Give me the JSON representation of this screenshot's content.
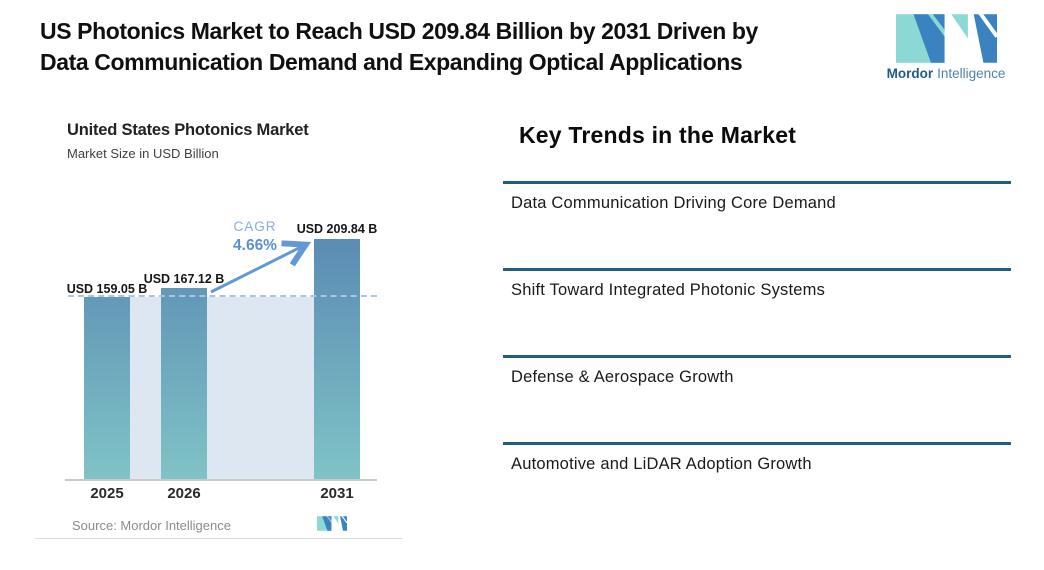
{
  "header": {
    "title_lines": [
      "US Photonics Market to Reach USD 209.84 Billion by 2031 Driven by",
      "Data Communication Demand and Expanding Optical Applications"
    ],
    "brand": {
      "name_bold": "Mordor",
      "name_regular": "Intelligence",
      "logo_colors": {
        "teal": "#8bd8d4",
        "blue": "#3b82c1"
      }
    }
  },
  "chart": {
    "title": "United States Photonics Market",
    "subtitle": "Market Size in USD Billion",
    "source": "Source: Mordor Intelligence"
  },
  "chart_data": {
    "type": "bar",
    "title": "United States Photonics Market",
    "ylabel": "Market Size in USD Billion",
    "categories": [
      "2025",
      "2026",
      "2031"
    ],
    "values": [
      159.05,
      167.12,
      209.84
    ],
    "bar_labels": [
      "USD 159.05 B",
      "USD 167.12 B",
      "USD 209.84 B"
    ],
    "cagr_label": "CAGR",
    "cagr_value": "4.66%",
    "reference_line_value": 159.05,
    "grid": "off",
    "colors": {
      "bar_top": "#5b8cb4",
      "bar_bottom": "#7fc3c6",
      "band": "#dde7f1",
      "dashed_line": "#a7c6e3",
      "arrow": "#6398d2"
    }
  },
  "trends": {
    "heading": "Key Trends in the Market",
    "divider_color": "#1e607f",
    "items": [
      "Data Communication Driving Core Demand",
      "Shift Toward Integrated Photonic Systems",
      "Defense & Aerospace Growth",
      "Automotive and LiDAR Adoption Growth"
    ]
  }
}
